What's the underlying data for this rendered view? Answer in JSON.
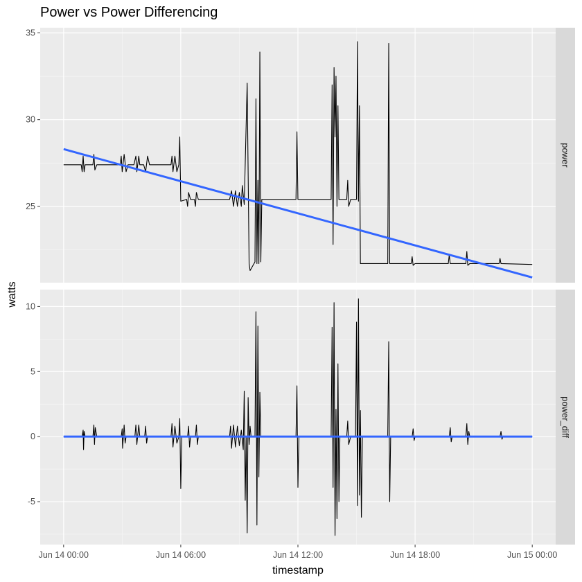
{
  "chart_data": {
    "type": "line",
    "title": "Power vs Power Differencing",
    "xlabel": "timestamp",
    "ylabel": "watts",
    "x_ticks": [
      "Jun 14 00:00",
      "Jun 14 06:00",
      "Jun 14 12:00",
      "Jun 14 18:00",
      "Jun 15 00:00"
    ],
    "x_tick_hours": [
      0,
      6,
      12,
      18,
      24
    ],
    "xlim_hours": [
      -1.2,
      25.2
    ],
    "grid": true,
    "panels": [
      {
        "name": "power",
        "ylim": [
          20.6,
          35.3
        ],
        "y_ticks": [
          25,
          30,
          35
        ],
        "y_tick_labels": [
          "25",
          "30",
          "35"
        ],
        "trend": {
          "start": [
            0,
            28.3
          ],
          "end": [
            24,
            20.9
          ],
          "color": "#3366ff"
        },
        "series": {
          "name": "power",
          "color": "#000000",
          "points": [
            [
              0,
              27.4
            ],
            [
              0.9,
              27.4
            ],
            [
              0.95,
              27.0
            ],
            [
              1.0,
              27.9
            ],
            [
              1.05,
              27.0
            ],
            [
              1.1,
              27.4
            ],
            [
              1.5,
              27.4
            ],
            [
              1.55,
              28.0
            ],
            [
              1.6,
              27.1
            ],
            [
              1.7,
              27.4
            ],
            [
              2.0,
              27.4
            ],
            [
              2.1,
              27.4
            ],
            [
              2.9,
              27.4
            ],
            [
              2.95,
              27.9
            ],
            [
              3.0,
              27.0
            ],
            [
              3.1,
              28.0
            ],
            [
              3.2,
              27.0
            ],
            [
              3.3,
              27.4
            ],
            [
              3.6,
              27.4
            ],
            [
              3.7,
              27.9
            ],
            [
              3.75,
              27.0
            ],
            [
              3.85,
              27.9
            ],
            [
              3.9,
              27.4
            ],
            [
              4.1,
              27.4
            ],
            [
              4.2,
              27.0
            ],
            [
              4.3,
              27.9
            ],
            [
              4.4,
              27.4
            ],
            [
              5.5,
              27.4
            ],
            [
              5.55,
              27.9
            ],
            [
              5.6,
              27.0
            ],
            [
              5.7,
              27.9
            ],
            [
              5.8,
              27.0
            ],
            [
              5.9,
              27.4
            ],
            [
              5.95,
              29.0
            ],
            [
              6.0,
              25.3
            ],
            [
              6.3,
              25.4
            ],
            [
              6.35,
              25.0
            ],
            [
              6.4,
              25.8
            ],
            [
              6.5,
              25.4
            ],
            [
              6.7,
              25.4
            ],
            [
              6.75,
              25.0
            ],
            [
              6.8,
              25.8
            ],
            [
              6.9,
              25.4
            ],
            [
              8.5,
              25.4
            ],
            [
              8.6,
              25.9
            ],
            [
              8.7,
              25.0
            ],
            [
              8.8,
              25.9
            ],
            [
              8.9,
              25.0
            ],
            [
              9.0,
              25.8
            ],
            [
              9.1,
              25.0
            ],
            [
              9.15,
              26.2
            ],
            [
              9.25,
              25.1
            ],
            [
              9.4,
              32.1
            ],
            [
              9.5,
              21.7
            ],
            [
              9.55,
              21.3
            ],
            [
              9.65,
              21.5
            ],
            [
              9.8,
              21.8
            ],
            [
              9.85,
              31.2
            ],
            [
              9.9,
              21.7
            ],
            [
              9.95,
              26.5
            ],
            [
              10.0,
              21.7
            ],
            [
              10.05,
              33.9
            ],
            [
              10.1,
              21.8
            ],
            [
              10.15,
              25.4
            ],
            [
              11.9,
              25.4
            ],
            [
              11.95,
              29.3
            ],
            [
              12.0,
              25.4
            ],
            [
              13.7,
              25.4
            ],
            [
              13.75,
              32.0
            ],
            [
              13.8,
              22.8
            ],
            [
              13.85,
              33.0
            ],
            [
              13.9,
              29.0
            ],
            [
              13.95,
              32.5
            ],
            [
              14.0,
              25.0
            ],
            [
              14.05,
              30.8
            ],
            [
              14.1,
              25.4
            ],
            [
              14.5,
              25.4
            ],
            [
              14.55,
              26.5
            ],
            [
              14.6,
              25.0
            ],
            [
              14.7,
              25.4
            ],
            [
              15.0,
              25.4
            ],
            [
              15.05,
              34.5
            ],
            [
              15.1,
              25.3
            ],
            [
              15.15,
              30.8
            ],
            [
              15.2,
              21.7
            ],
            [
              16.6,
              21.7
            ],
            [
              16.65,
              34.4
            ],
            [
              16.7,
              21.7
            ],
            [
              17.8,
              21.7
            ],
            [
              17.85,
              22.1
            ],
            [
              17.9,
              21.6
            ],
            [
              18.0,
              21.7
            ],
            [
              19.7,
              21.7
            ],
            [
              19.75,
              22.2
            ],
            [
              19.8,
              21.7
            ],
            [
              20.6,
              21.7
            ],
            [
              20.65,
              22.4
            ],
            [
              20.7,
              21.6
            ],
            [
              20.8,
              21.7
            ],
            [
              22.3,
              21.7
            ],
            [
              22.35,
              22.0
            ],
            [
              22.4,
              21.7
            ],
            [
              24.0,
              21.65
            ]
          ]
        }
      },
      {
        "name": "power_diff",
        "ylim": [
          -8.3,
          11.3
        ],
        "y_ticks": [
          -5,
          0,
          5,
          10
        ],
        "y_tick_labels": [
          "-5",
          "0",
          "5",
          "10"
        ],
        "trend": {
          "start": [
            0,
            0
          ],
          "end": [
            24,
            0
          ],
          "color": "#3366ff"
        },
        "series": {
          "name": "power_diff",
          "color": "#000000",
          "points": [
            [
              0,
              0
            ],
            [
              0.95,
              0
            ],
            [
              1.0,
              0.5
            ],
            [
              1.02,
              -1.0
            ],
            [
              1.05,
              0.4
            ],
            [
              1.1,
              0
            ],
            [
              1.5,
              0
            ],
            [
              1.55,
              0.9
            ],
            [
              1.58,
              -0.6
            ],
            [
              1.62,
              0.7
            ],
            [
              1.7,
              0
            ],
            [
              2.95,
              0
            ],
            [
              3.0,
              0.6
            ],
            [
              3.02,
              -0.9
            ],
            [
              3.1,
              0.9
            ],
            [
              3.15,
              -0.5
            ],
            [
              3.2,
              0
            ],
            [
              3.65,
              0
            ],
            [
              3.7,
              0.9
            ],
            [
              3.75,
              -0.6
            ],
            [
              3.85,
              0.9
            ],
            [
              3.9,
              0
            ],
            [
              4.15,
              0
            ],
            [
              4.2,
              0.8
            ],
            [
              4.25,
              -0.5
            ],
            [
              4.3,
              0
            ],
            [
              5.5,
              0
            ],
            [
              5.55,
              1.0
            ],
            [
              5.6,
              -0.8
            ],
            [
              5.7,
              0.8
            ],
            [
              5.8,
              -0.5
            ],
            [
              5.9,
              0
            ],
            [
              5.95,
              1.4
            ],
            [
              6.0,
              -4.0
            ],
            [
              6.05,
              0
            ],
            [
              6.35,
              0
            ],
            [
              6.4,
              0.8
            ],
            [
              6.45,
              -0.8
            ],
            [
              6.5,
              0
            ],
            [
              6.75,
              0
            ],
            [
              6.8,
              0.9
            ],
            [
              6.85,
              -0.6
            ],
            [
              6.9,
              0
            ],
            [
              8.5,
              0
            ],
            [
              8.55,
              0.8
            ],
            [
              8.6,
              -0.9
            ],
            [
              8.7,
              0.9
            ],
            [
              8.8,
              -0.8
            ],
            [
              8.9,
              0.8
            ],
            [
              9.0,
              -0.7
            ],
            [
              9.1,
              0.5
            ],
            [
              9.2,
              -1.0
            ],
            [
              9.25,
              3.5
            ],
            [
              9.3,
              -4.9
            ],
            [
              9.35,
              0
            ],
            [
              9.4,
              -7.4
            ],
            [
              9.45,
              3.0
            ],
            [
              9.5,
              -0.6
            ],
            [
              9.55,
              0.8
            ],
            [
              9.6,
              0
            ],
            [
              9.8,
              0
            ],
            [
              9.85,
              9.6
            ],
            [
              9.9,
              -6.8
            ],
            [
              9.95,
              8.5
            ],
            [
              10.0,
              -3.1
            ],
            [
              10.05,
              3.4
            ],
            [
              10.1,
              0
            ],
            [
              11.9,
              0
            ],
            [
              11.95,
              3.9
            ],
            [
              12.0,
              -3.9
            ],
            [
              12.05,
              0
            ],
            [
              13.7,
              0
            ],
            [
              13.75,
              8.4
            ],
            [
              13.8,
              -3.9
            ],
            [
              13.85,
              10.3
            ],
            [
              13.9,
              -7.6
            ],
            [
              13.95,
              2.1
            ],
            [
              14.0,
              -6.3
            ],
            [
              14.05,
              5.6
            ],
            [
              14.1,
              -5.0
            ],
            [
              14.15,
              0
            ],
            [
              14.5,
              0
            ],
            [
              14.55,
              1.2
            ],
            [
              14.6,
              -0.6
            ],
            [
              14.7,
              0
            ],
            [
              14.95,
              0
            ],
            [
              15.0,
              8.8
            ],
            [
              15.05,
              -5.3
            ],
            [
              15.1,
              10.6
            ],
            [
              15.15,
              -4.5
            ],
            [
              15.2,
              2.0
            ],
            [
              15.25,
              -6.2
            ],
            [
              15.3,
              0
            ],
            [
              16.6,
              0
            ],
            [
              16.65,
              7.3
            ],
            [
              16.7,
              -5.0
            ],
            [
              16.75,
              0
            ],
            [
              17.85,
              0
            ],
            [
              17.9,
              0.6
            ],
            [
              17.95,
              -0.3
            ],
            [
              18.0,
              0
            ],
            [
              19.75,
              0
            ],
            [
              19.8,
              0.7
            ],
            [
              19.85,
              -0.4
            ],
            [
              19.9,
              0
            ],
            [
              20.6,
              0
            ],
            [
              20.65,
              1.0
            ],
            [
              20.7,
              -0.6
            ],
            [
              20.75,
              0.4
            ],
            [
              20.8,
              0
            ],
            [
              22.35,
              0
            ],
            [
              22.4,
              0.4
            ],
            [
              22.45,
              -0.2
            ],
            [
              22.5,
              0
            ],
            [
              24.0,
              0
            ]
          ]
        }
      }
    ]
  }
}
